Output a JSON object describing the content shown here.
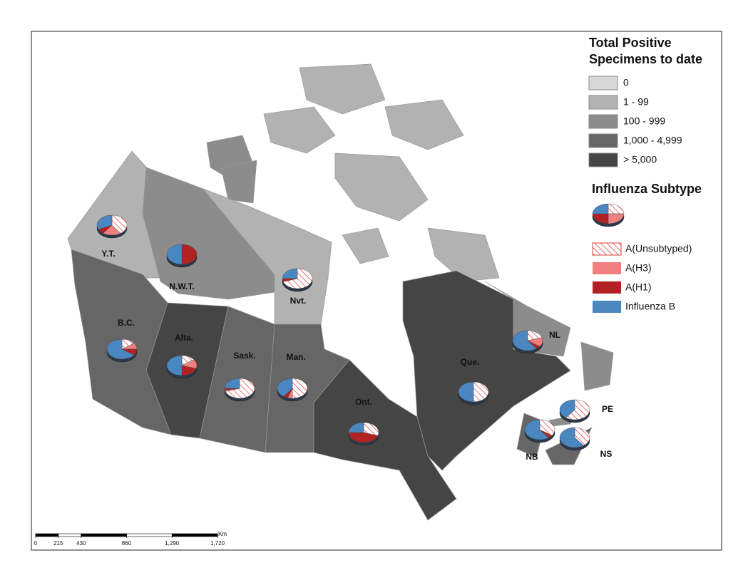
{
  "legend": {
    "title": "Total Positive Specimens to date",
    "classes": [
      {
        "label": "0",
        "color": "#d9d9d9"
      },
      {
        "label": "1 - 99",
        "color": "#b2b2b2"
      },
      {
        "label": "100 - 999",
        "color": "#8c8c8c"
      },
      {
        "label": "1,000 - 4,999",
        "color": "#666666"
      },
      {
        "label": "> 5,000",
        "color": "#454545"
      }
    ]
  },
  "pie_legend": {
    "title": "Influenza Subtype",
    "items": [
      {
        "label": "A(Unsubtyped)",
        "color": "#e04040",
        "pattern": "hatch"
      },
      {
        "label": "A(H3)",
        "color": "#f08080"
      },
      {
        "label": "A(H1)",
        "color": "#b22222"
      },
      {
        "label": "Influenza B",
        "color": "#4a86c0"
      }
    ]
  },
  "regions": [
    {
      "label": "Y.T.",
      "class": 1,
      "values": [
        40,
        20,
        8,
        32
      ]
    },
    {
      "label": "N.W.T.",
      "class": 2,
      "values": [
        0,
        0,
        50,
        50
      ]
    },
    {
      "label": "Nvt.",
      "class": 1,
      "values": [
        70,
        0,
        5,
        25
      ]
    },
    {
      "label": "B.C.",
      "class": 3,
      "values": [
        15,
        10,
        10,
        65
      ]
    },
    {
      "label": "Alta.",
      "class": 4,
      "values": [
        15,
        15,
        20,
        50
      ]
    },
    {
      "label": "Sask.",
      "class": 3,
      "values": [
        70,
        2,
        3,
        25
      ]
    },
    {
      "label": "Man.",
      "class": 3,
      "values": [
        50,
        5,
        5,
        40
      ]
    },
    {
      "label": "Ont.",
      "class": 4,
      "values": [
        30,
        0,
        45,
        25
      ]
    },
    {
      "label": "Que.",
      "class": 4,
      "values": [
        50,
        0,
        0,
        50
      ]
    },
    {
      "label": "NL",
      "class": 2,
      "values": [
        20,
        15,
        5,
        60
      ]
    },
    {
      "label": "PE",
      "class": 2,
      "values": [
        60,
        0,
        0,
        40
      ]
    },
    {
      "label": "NB",
      "class": 3,
      "values": [
        35,
        0,
        5,
        60
      ]
    },
    {
      "label": "NS",
      "class": 3,
      "values": [
        40,
        0,
        0,
        60
      ]
    }
  ],
  "scale_bar": {
    "unit": "Km",
    "xlim": [
      0,
      1720
    ],
    "ticks": [
      0,
      215,
      430,
      860,
      {
        "value": 1290,
        "label": "1,290"
      },
      {
        "value": 1720,
        "label": "1,720"
      }
    ]
  }
}
